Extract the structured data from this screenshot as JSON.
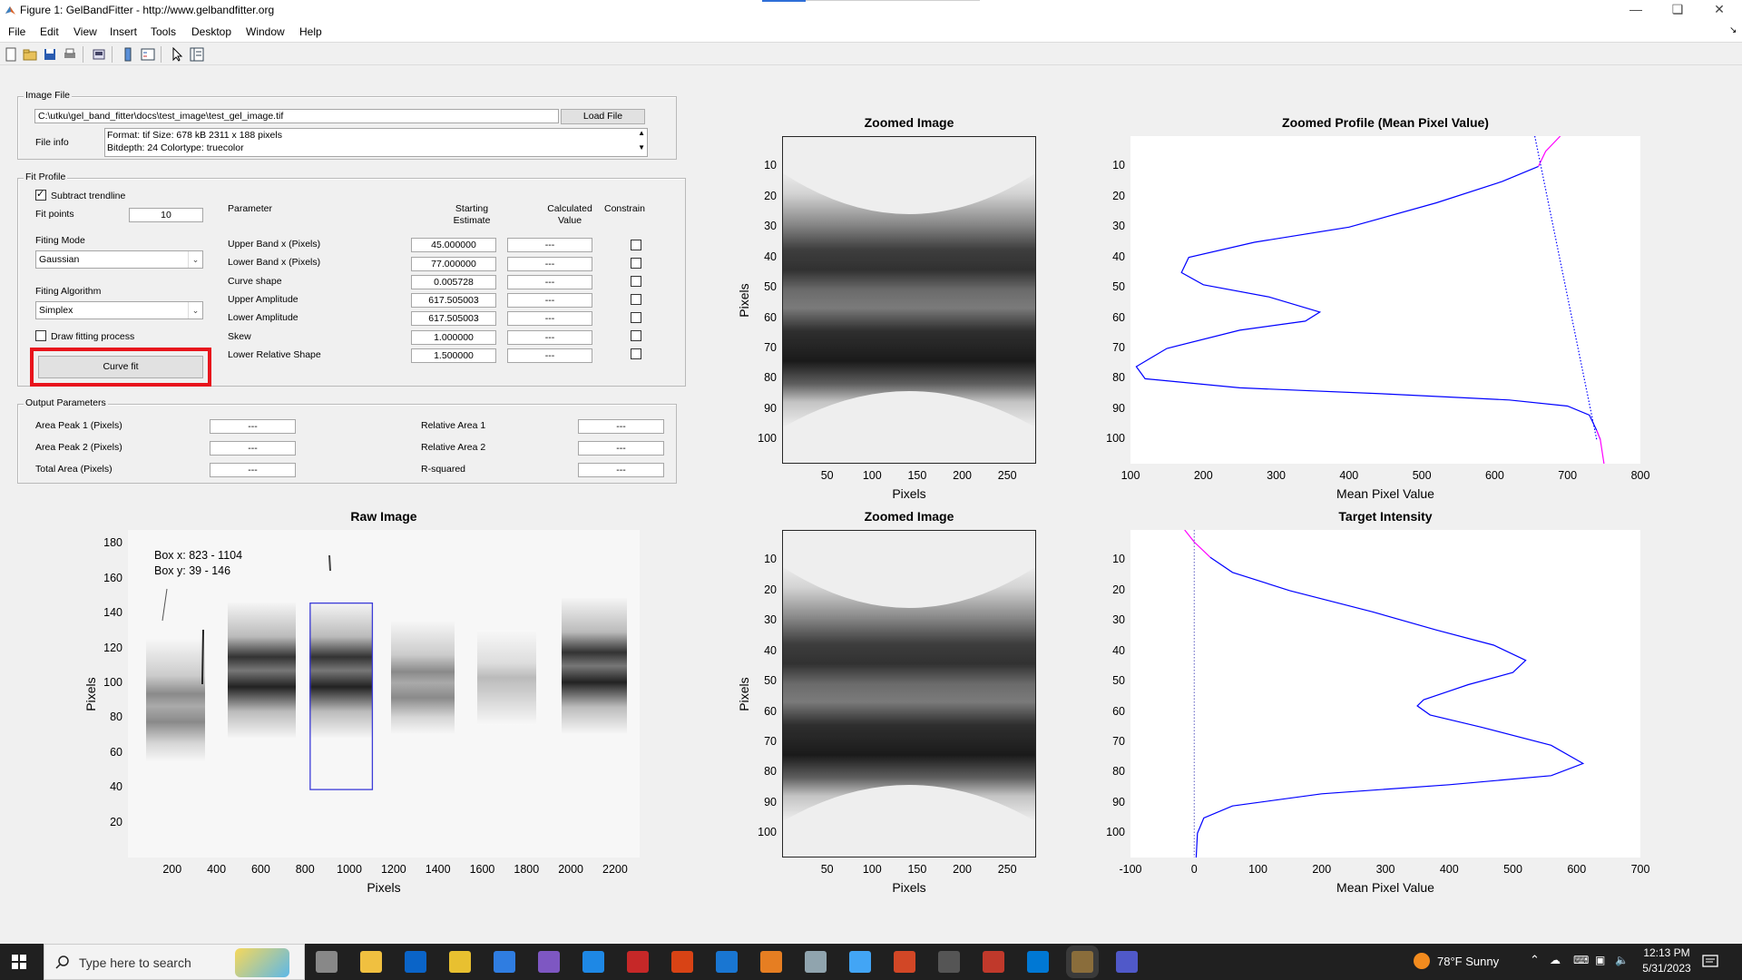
{
  "window": {
    "title": "Figure 1: GelBandFitter - http://www.gelbandfitter.org",
    "minimize_icon": "minimize-icon",
    "maximize_icon": "restore-icon",
    "close_icon": "close-icon"
  },
  "menu": [
    "File",
    "Edit",
    "View",
    "Insert",
    "Tools",
    "Desktop",
    "Window",
    "Help"
  ],
  "toolbar_icons": [
    "new-figure-icon",
    "open-file-icon",
    "save-icon",
    "print-icon",
    "print-preview-icon",
    "colorbar-icon",
    "legend-icon",
    "pointer-icon",
    "property-inspector-icon"
  ],
  "image_file": {
    "title": "Image File",
    "path": "C:\\utku\\gel_band_fitter\\docs\\test_image\\test_gel_image.tif",
    "load_button": "Load File",
    "file_info_label": "File info",
    "file_info_line1": "Format: tif    Size: 678 kB    2311 x 188 pixels",
    "file_info_line2": "Bitdepth: 24    Colortype: truecolor"
  },
  "fit_profile": {
    "title": "Fit Profile",
    "subtract_trendline": "Subtract trendline",
    "subtract_checked": true,
    "fit_points_label": "Fit points",
    "fit_points": "10",
    "fitting_mode_label": "Fiting Mode",
    "fitting_mode": "Gaussian",
    "fitting_algorithm_label": "Fiting Algorithm",
    "fitting_algorithm": "Simplex",
    "draw_fitting": "Draw fitting process",
    "draw_checked": false,
    "curve_fit_button": "Curve fit",
    "highlight_color": "#e8141c",
    "col_parameter": "Parameter",
    "col_starting_1": "Starting",
    "col_starting_2": "Estimate",
    "col_calculated_1": "Calculated",
    "col_calculated_2": "Value",
    "col_constrain": "Constrain",
    "params": [
      {
        "name": "Upper Band x (Pixels)",
        "start": "45.000000",
        "calc": "---"
      },
      {
        "name": "Lower Band x (Pixels)",
        "start": "77.000000",
        "calc": "---"
      },
      {
        "name": "Curve shape",
        "start": "0.005728",
        "calc": "---"
      },
      {
        "name": "Upper Amplitude",
        "start": "617.505003",
        "calc": "---"
      },
      {
        "name": "Lower Amplitude",
        "start": "617.505003",
        "calc": "---"
      },
      {
        "name": "Skew",
        "start": "1.000000",
        "calc": "---"
      },
      {
        "name": "Lower Relative Shape",
        "start": "1.500000",
        "calc": "---"
      }
    ]
  },
  "output": {
    "title": "Output Parameters",
    "area_peak1_label": "Area Peak 1 (Pixels)",
    "area_peak1": "---",
    "area_peak2_label": "Area Peak 2  (Pixels)",
    "area_peak2": "---",
    "total_area_label": "Total Area  (Pixels)",
    "total_area": "---",
    "rel_area1_label": "Relative Area 1",
    "rel_area1": "---",
    "rel_area2_label": "Relative Area 2",
    "rel_area2": "---",
    "rsquared_label": "R-squared",
    "rsquared": "---"
  },
  "chart_data": [
    {
      "type": "image",
      "title": "Zoomed Image",
      "xlabel": "Pixels",
      "ylabel": "Pixels",
      "xticks": [
        "50",
        "100",
        "150",
        "200",
        "250"
      ],
      "yticks": [
        "10",
        "20",
        "30",
        "40",
        "50",
        "60",
        "70",
        "80",
        "90",
        "100"
      ],
      "xlim": [
        0,
        282
      ],
      "ylim": [
        0,
        108
      ]
    },
    {
      "type": "line",
      "title": "Zoomed Profile (Mean Pixel Value)",
      "xlabel": "Mean Pixel Value",
      "xticks": [
        "100",
        "200",
        "300",
        "400",
        "500",
        "600",
        "700",
        "800"
      ],
      "yticks": [
        "10",
        "20",
        "30",
        "40",
        "50",
        "60",
        "70",
        "80",
        "90",
        "100"
      ],
      "xlim": [
        100,
        800
      ],
      "ylim": [
        0,
        108
      ],
      "y_reversed": true,
      "series": [
        {
          "color": "#0000ff",
          "style": "solid",
          "points": [
            [
              660,
              10
            ],
            [
              610,
              15
            ],
            [
              520,
              22
            ],
            [
              400,
              30
            ],
            [
              270,
              35
            ],
            [
              180,
              40
            ],
            [
              170,
              45
            ],
            [
              200,
              49
            ],
            [
              290,
              53
            ],
            [
              360,
              58
            ],
            [
              340,
              61
            ],
            [
              250,
              64
            ],
            [
              150,
              70
            ],
            [
              108,
              76
            ],
            [
              120,
              80
            ],
            [
              250,
              83
            ],
            [
              450,
              85
            ],
            [
              620,
              87
            ],
            [
              700,
              89
            ],
            [
              730,
              92
            ],
            [
              740,
              97
            ],
            [
              745,
              100
            ]
          ]
        },
        {
          "color": "#ff00ff",
          "style": "solid",
          "points": [
            [
              690,
              0
            ],
            [
              670,
              5
            ],
            [
              660,
              10
            ]
          ]
        },
        {
          "color": "#0000ff",
          "style": "dotted",
          "points": [
            [
              655,
              0
            ],
            [
              740,
              100
            ]
          ]
        },
        {
          "color": "#ff00ff",
          "style": "solid",
          "points": [
            [
              740,
              97
            ],
            [
              745,
              100
            ],
            [
              750,
              108
            ]
          ]
        }
      ]
    },
    {
      "type": "image",
      "title": "Raw Image",
      "xlabel": "Pixels",
      "ylabel": "Pixels",
      "xticks": [
        "200",
        "400",
        "600",
        "800",
        "1000",
        "1200",
        "1400",
        "1600",
        "1800",
        "2000",
        "2200"
      ],
      "yticks": [
        "20",
        "40",
        "60",
        "80",
        "100",
        "120",
        "140",
        "160",
        "180"
      ],
      "xlim": [
        0,
        2311
      ],
      "ylim": [
        0,
        188
      ],
      "box_x": "Box x: 823 - 1104",
      "box_y": "Box y: 39 - 146",
      "box_color": "#3b3bd8",
      "box": {
        "x0": 823,
        "x1": 1104,
        "y0": 39,
        "y1": 146
      }
    },
    {
      "type": "image",
      "title": "Zoomed Image",
      "xlabel": "Pixels",
      "ylabel": "Pixels",
      "xticks": [
        "50",
        "100",
        "150",
        "200",
        "250"
      ],
      "yticks": [
        "10",
        "20",
        "30",
        "40",
        "50",
        "60",
        "70",
        "80",
        "90",
        "100"
      ],
      "xlim": [
        0,
        282
      ],
      "ylim": [
        0,
        108
      ]
    },
    {
      "type": "line",
      "title": "Target Intensity",
      "xlabel": "Mean Pixel Value",
      "xticks": [
        "-100",
        "0",
        "100",
        "200",
        "300",
        "400",
        "500",
        "600",
        "700"
      ],
      "yticks": [
        "10",
        "20",
        "30",
        "40",
        "50",
        "60",
        "70",
        "80",
        "90",
        "100"
      ],
      "xlim": [
        -100,
        700
      ],
      "ylim": [
        0,
        108
      ],
      "y_reversed": true,
      "series": [
        {
          "color": "#0000ff",
          "style": "solid",
          "points": [
            [
              25,
              9
            ],
            [
              60,
              14
            ],
            [
              150,
              20
            ],
            [
              280,
              27
            ],
            [
              380,
              33
            ],
            [
              470,
              38
            ],
            [
              520,
              43
            ],
            [
              500,
              47
            ],
            [
              430,
              51
            ],
            [
              360,
              56
            ],
            [
              350,
              58
            ],
            [
              370,
              61
            ],
            [
              450,
              65
            ],
            [
              560,
              71
            ],
            [
              610,
              77
            ],
            [
              560,
              81
            ],
            [
              400,
              84
            ],
            [
              200,
              87
            ],
            [
              60,
              91
            ],
            [
              15,
              95
            ],
            [
              5,
              100
            ],
            [
              3,
              108
            ]
          ]
        },
        {
          "color": "#ff00ff",
          "style": "solid",
          "points": [
            [
              -15,
              0
            ],
            [
              0,
              4
            ],
            [
              25,
              9
            ]
          ]
        },
        {
          "color": "#7777cc",
          "style": "dotted",
          "points": [
            [
              0,
              0
            ],
            [
              0,
              108
            ]
          ]
        }
      ]
    }
  ],
  "taskbar": {
    "search_placeholder": "Type here to search",
    "weather": "78°F  Sunny",
    "time": "12:13 PM",
    "date": "5/31/2023",
    "app_icons": [
      "task-view-icon",
      "file-explorer-icon",
      "outlook-icon",
      "chrome-icon",
      "todo-icon",
      "github-icon",
      "edge-icon",
      "zotero-icon",
      "app-icon",
      "vscode-icon",
      "matlab-icon",
      "app-icon",
      "photos-icon",
      "powerpoint-icon",
      "media-player-icon",
      "git-icon",
      "edge-dev-icon",
      "matlab-active-icon",
      "teams-icon"
    ]
  }
}
